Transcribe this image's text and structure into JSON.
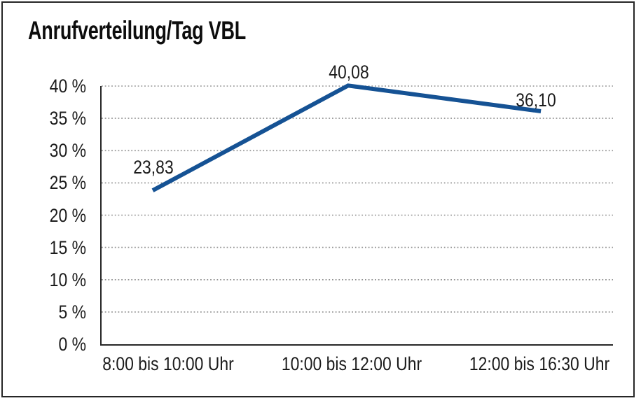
{
  "window": {
    "background": "#ffffff",
    "frame_border_color": "#262626"
  },
  "chart_data": {
    "type": "line",
    "title": "Anrufverteilung/Tag VBL",
    "categories": [
      "8:00 bis 10:00 Uhr",
      "10:00 bis 12:00 Uhr",
      "12:00 bis 16:30 Uhr"
    ],
    "values": [
      23.83,
      40.08,
      36.1
    ],
    "point_labels": [
      "23,83",
      "40,08",
      "36,10"
    ],
    "xlabel": "",
    "ylabel": "",
    "ylim": [
      0,
      40
    ],
    "ytick_step": 5,
    "ytick_labels": [
      "0 %",
      "5 %",
      "10 %",
      "15 %",
      "20 %",
      "25 %",
      "30 %",
      "35 %",
      "40 %"
    ],
    "grid": "horizontal-dotted",
    "gridline_color": "#909090",
    "axis_color": "#262626",
    "line_color": "#155294",
    "legend": "none"
  }
}
